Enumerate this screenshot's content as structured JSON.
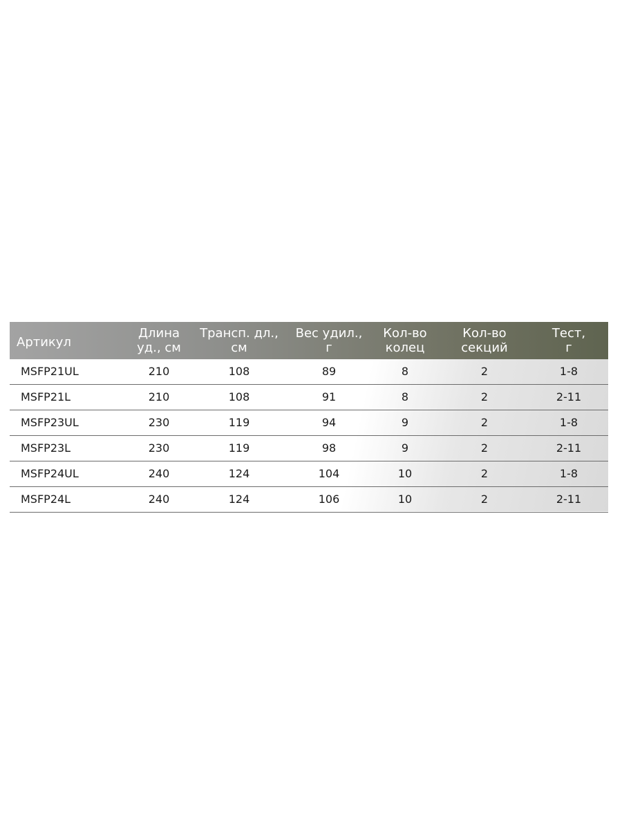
{
  "table": {
    "headers": [
      {
        "line1": "Артикул",
        "line2": ""
      },
      {
        "line1": "Длина",
        "line2": "уд., см"
      },
      {
        "line1": "Трансп. дл.,",
        "line2": "см"
      },
      {
        "line1": "Вес удил.,",
        "line2": "г"
      },
      {
        "line1": "Кол-во",
        "line2": "колец"
      },
      {
        "line1": "Кол-во",
        "line2": "секций"
      },
      {
        "line1": "Тест,",
        "line2": "г"
      }
    ],
    "rows": [
      [
        "MSFP21UL",
        "210",
        "108",
        "89",
        "8",
        "2",
        "1-8"
      ],
      [
        "MSFP21L",
        "210",
        "108",
        "91",
        "8",
        "2",
        "2-11"
      ],
      [
        "MSFP23UL",
        "230",
        "119",
        "94",
        "9",
        "2",
        "1-8"
      ],
      [
        "MSFP23L",
        "230",
        "119",
        "98",
        "9",
        "2",
        "2-11"
      ],
      [
        "MSFP24UL",
        "240",
        "124",
        "104",
        "10",
        "2",
        "1-8"
      ],
      [
        "MSFP24L",
        "240",
        "124",
        "106",
        "10",
        "2",
        "2-11"
      ]
    ]
  }
}
